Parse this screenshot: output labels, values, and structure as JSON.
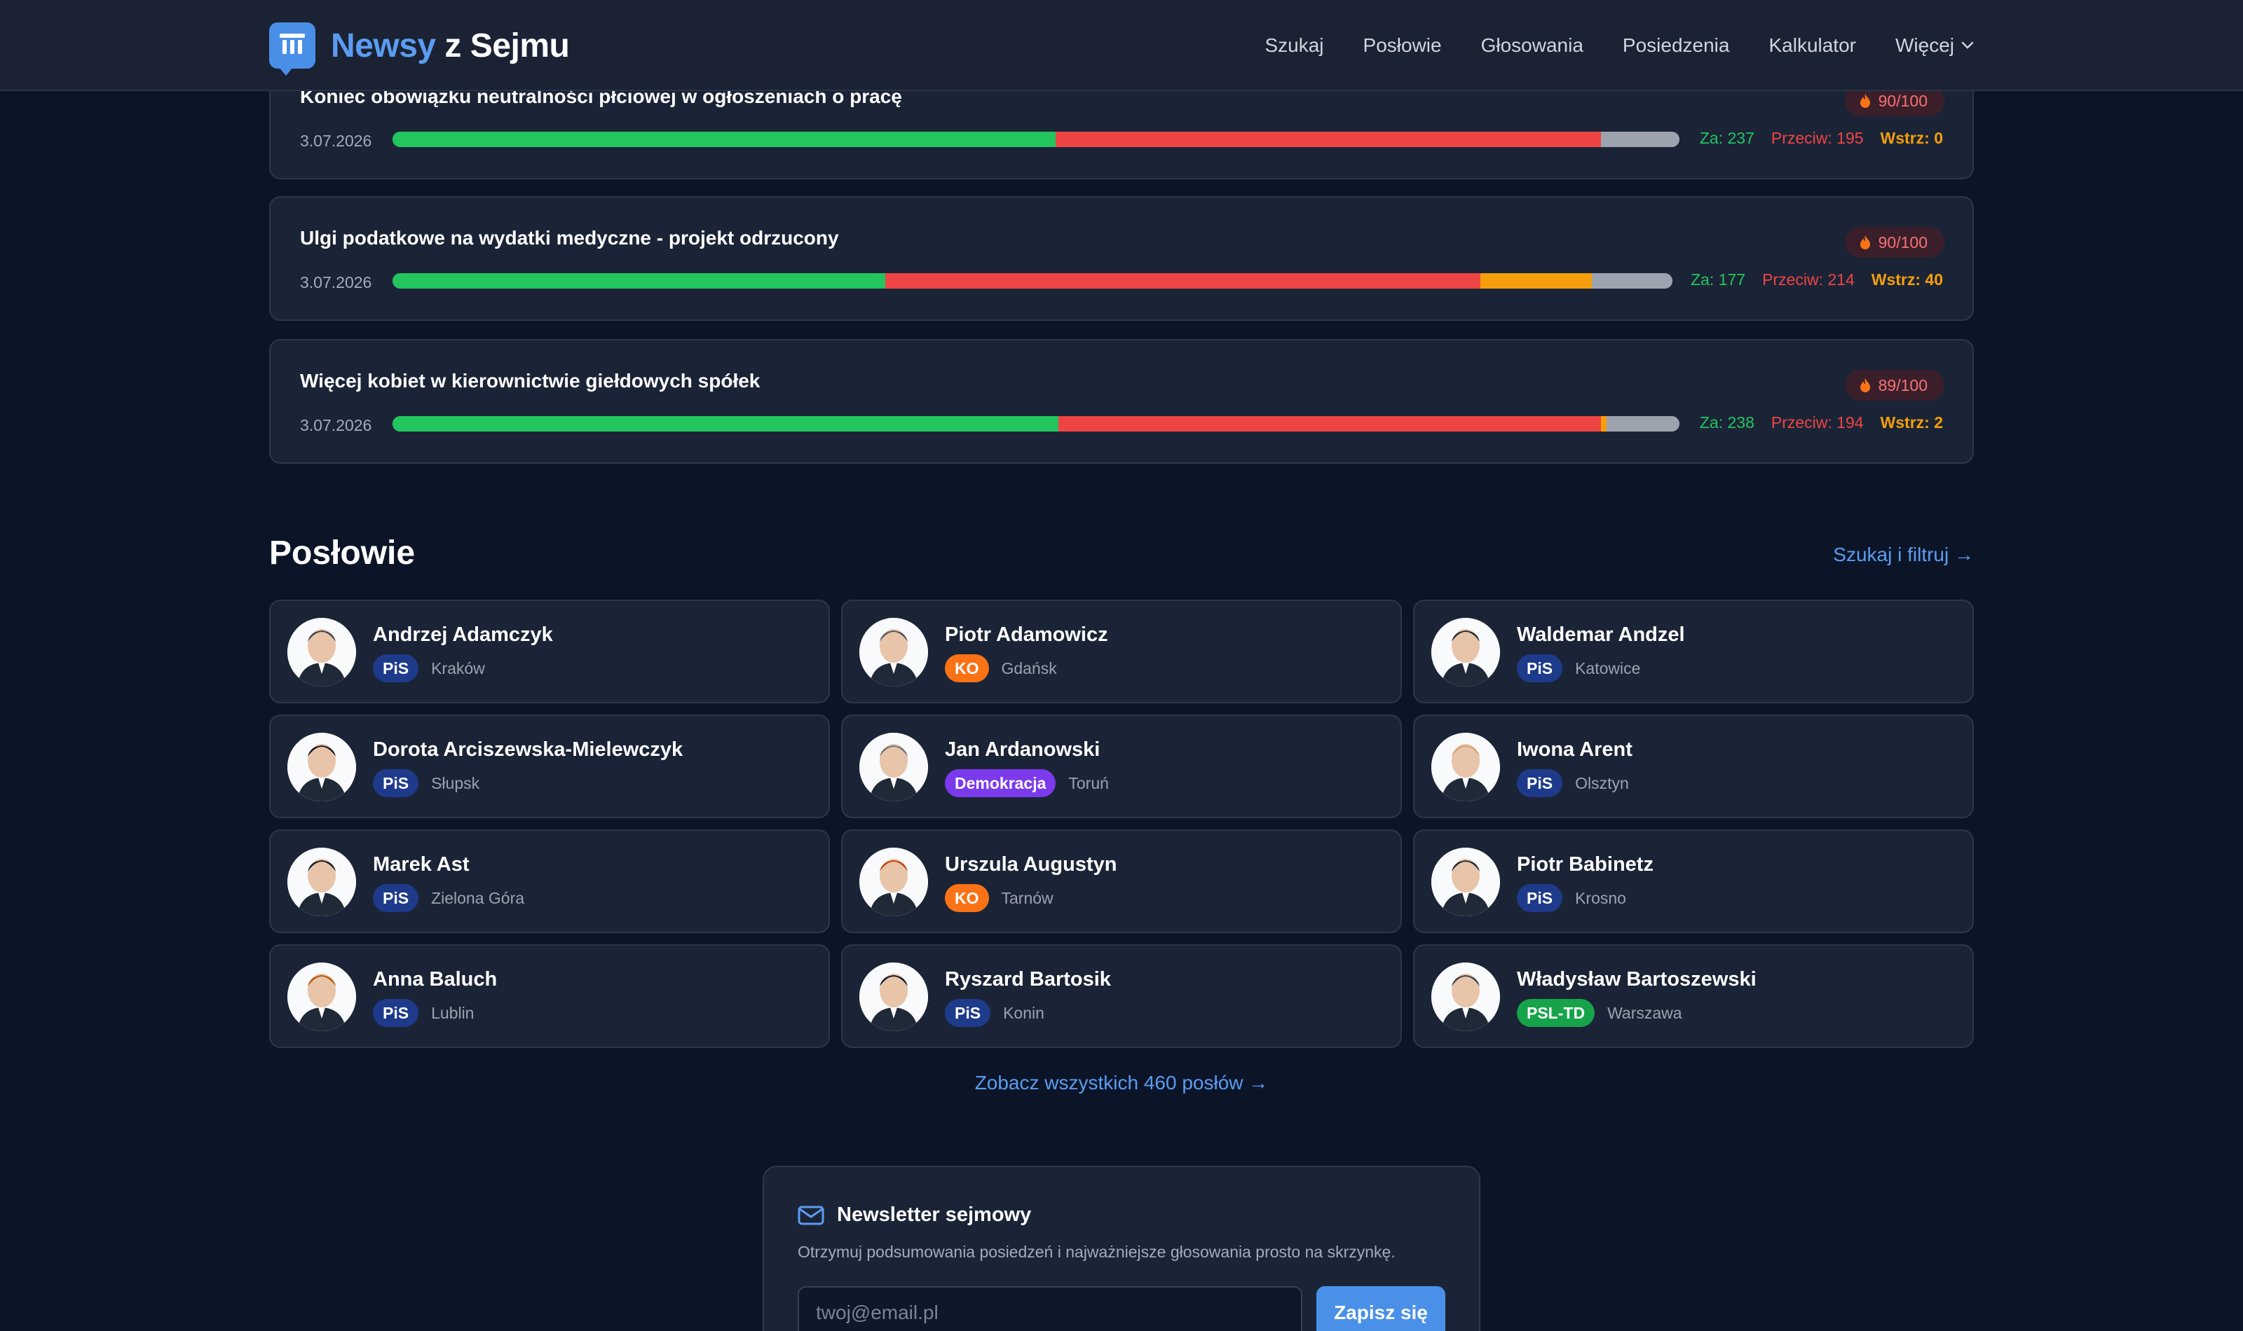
{
  "header": {
    "brand_accent": "Newsy",
    "brand_rest": " z Sejmu",
    "nav": [
      "Szukaj",
      "Posłowie",
      "Głosowania",
      "Posiedzenia",
      "Kalkulator",
      "Więcej"
    ]
  },
  "votes": [
    {
      "title": "Koniec obowiązku neutralności płciowej w ogłoszeniach o pracę",
      "date": "3.07.2026",
      "score": "90/100",
      "za": 237,
      "przeciw": 195,
      "wstrz": 0,
      "za_label": "Za: 237",
      "przeciw_label": "Przeciw: 195",
      "wstrz_label": "Wstrz: 0"
    },
    {
      "title": "Ulgi podatkowe na wydatki medyczne - projekt odrzucony",
      "date": "3.07.2026",
      "score": "90/100",
      "za": 177,
      "przeciw": 214,
      "wstrz": 40,
      "za_label": "Za: 177",
      "przeciw_label": "Przeciw: 214",
      "wstrz_label": "Wstrz: 40"
    },
    {
      "title": "Więcej kobiet w kierownictwie giełdowych spółek",
      "date": "3.07.2026",
      "score": "89/100",
      "za": 238,
      "przeciw": 194,
      "wstrz": 2,
      "za_label": "Za: 238",
      "przeciw_label": "Przeciw: 194",
      "wstrz_label": "Wstrz: 2"
    }
  ],
  "mps_section": {
    "title": "Posłowie",
    "link": "Szukaj i filtruj →",
    "all_link": "Zobacz wszystkich 460 posłów →"
  },
  "mps": [
    {
      "name": "Andrzej Adamczyk",
      "party": "PiS",
      "city": "Kraków"
    },
    {
      "name": "Piotr Adamowicz",
      "party": "KO",
      "city": "Gdańsk"
    },
    {
      "name": "Waldemar Andzel",
      "party": "PiS",
      "city": "Katowice"
    },
    {
      "name": "Dorota Arciszewska-Mielewczyk",
      "party": "PiS",
      "city": "Słupsk"
    },
    {
      "name": "Jan Ardanowski",
      "party": "Demokracja",
      "city": "Toruń"
    },
    {
      "name": "Iwona Arent",
      "party": "PiS",
      "city": "Olsztyn"
    },
    {
      "name": "Marek Ast",
      "party": "PiS",
      "city": "Zielona Góra"
    },
    {
      "name": "Urszula Augustyn",
      "party": "KO",
      "city": "Tarnów"
    },
    {
      "name": "Piotr Babinetz",
      "party": "PiS",
      "city": "Krosno"
    },
    {
      "name": "Anna Baluch",
      "party": "PiS",
      "city": "Lublin"
    },
    {
      "name": "Ryszard Bartosik",
      "party": "PiS",
      "city": "Konin"
    },
    {
      "name": "Władysław Bartoszewski",
      "party": "PSL-TD",
      "city": "Warszawa"
    }
  ],
  "party_colors": {
    "PiS": "#1e3a8a",
    "KO": "#f97316",
    "Demokracja": "#7c3aed",
    "PSL-TD": "#16a34a"
  },
  "newsletter": {
    "title": "Newsletter sejmowy",
    "description": "Otrzymuj podsumowania posiedzeń i najważniejsze głosowania prosto na skrzynkę.",
    "placeholder": "twoj@email.pl",
    "button": "Zapisz się"
  }
}
